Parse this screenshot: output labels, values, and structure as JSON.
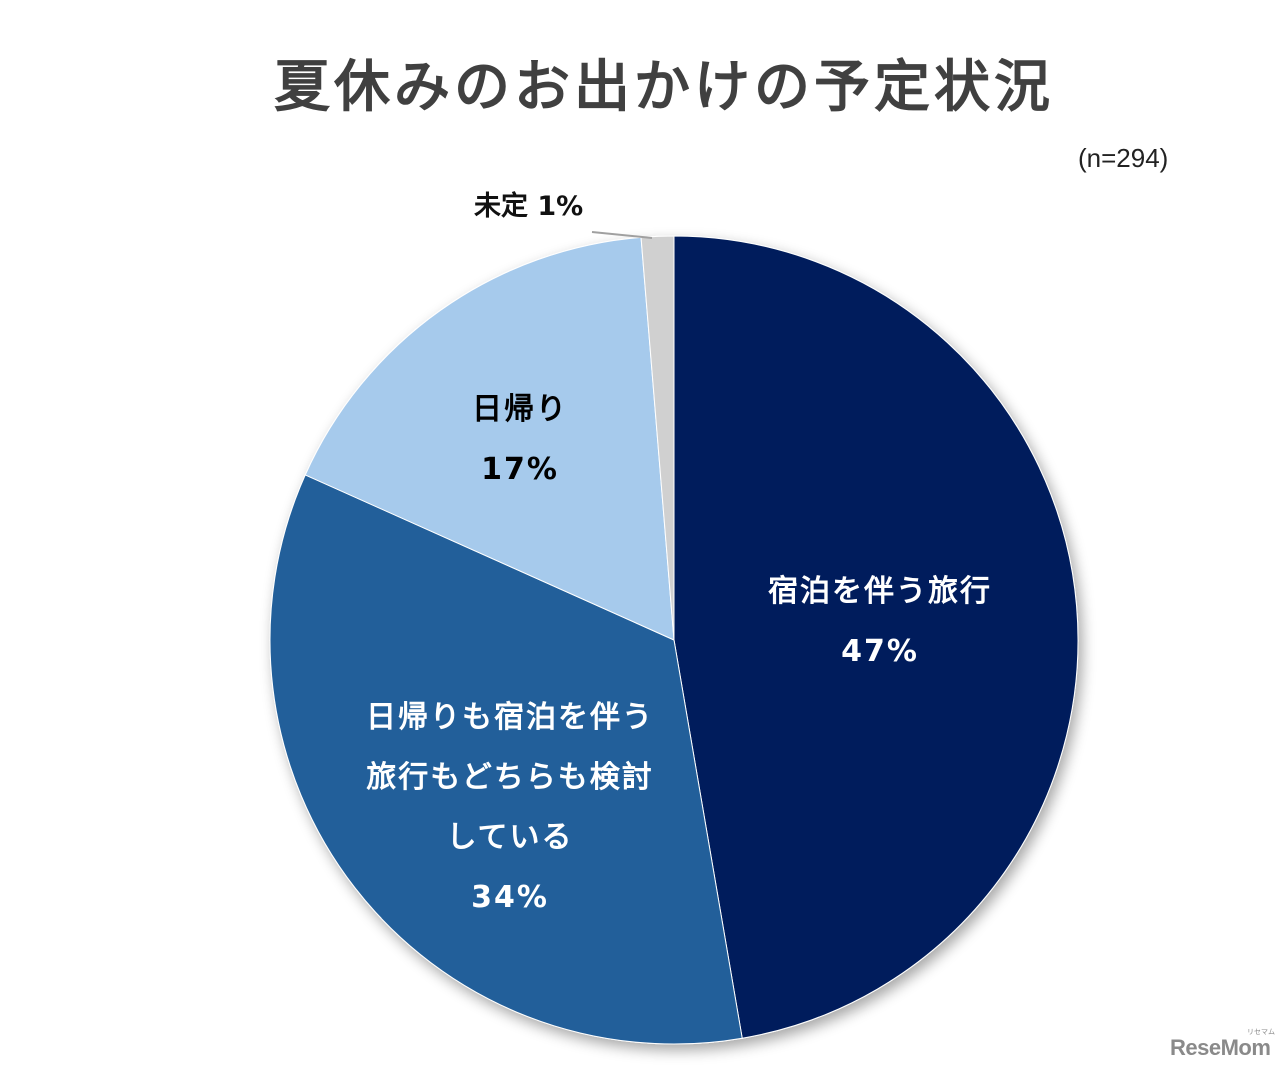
{
  "title": "夏休みのお出かけの予定状況",
  "sample_size": "(n=294)",
  "labels": {
    "overnight": {
      "name": "宿泊を伴う旅行",
      "value": "47%"
    },
    "both": {
      "line1": "日帰りも宿泊を伴う",
      "line2": "旅行もどちらも検討",
      "line3": "している",
      "value": "34%"
    },
    "daytrip": {
      "name": "日帰り",
      "value": "17%"
    },
    "undecided": {
      "text": "未定 1%"
    }
  },
  "logo": {
    "text": "ReseMom",
    "sub": "リセマム"
  },
  "colors": {
    "overnight": "#001F5B",
    "both": "#215F9A",
    "daytrip": "#A6CAEC",
    "undecided": "#D0D0D0"
  },
  "chart_data": {
    "type": "pie",
    "title": "夏休みのお出かけの予定状況",
    "subtitle": "(n=294)",
    "categories": [
      "宿泊を伴う旅行",
      "日帰りも宿泊を伴う旅行もどちらも検討している",
      "日帰り",
      "未定"
    ],
    "values": [
      47,
      34,
      17,
      1
    ],
    "unit": "%",
    "colors": [
      "#001F5B",
      "#215F9A",
      "#A6CAEC",
      "#D0D0D0"
    ],
    "start_angle": "12 o'clock",
    "direction": "clockwise",
    "legend": "none (data labels on slices)"
  }
}
